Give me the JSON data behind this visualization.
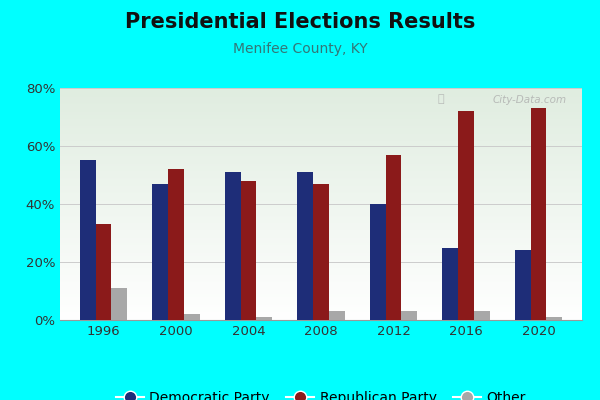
{
  "title": "Presidential Elections Results",
  "subtitle": "Menifee County, KY",
  "years": [
    1996,
    2000,
    2004,
    2008,
    2012,
    2016,
    2020
  ],
  "democratic": [
    55,
    47,
    51,
    51,
    40,
    25,
    24
  ],
  "republican": [
    33,
    52,
    48,
    47,
    57,
    72,
    73
  ],
  "other": [
    11,
    2,
    1,
    3,
    3,
    3,
    1
  ],
  "dem_color": "#1e2d78",
  "rep_color": "#8b1a1a",
  "other_color": "#a8a8a8",
  "bg_outer": "#00ffff",
  "ylim": [
    0,
    80
  ],
  "yticks": [
    0,
    20,
    40,
    60,
    80
  ],
  "ytick_labels": [
    "0%",
    "20%",
    "40%",
    "60%",
    "80%"
  ],
  "title_fontsize": 15,
  "subtitle_fontsize": 10,
  "legend_fontsize": 10,
  "bar_width": 0.22
}
